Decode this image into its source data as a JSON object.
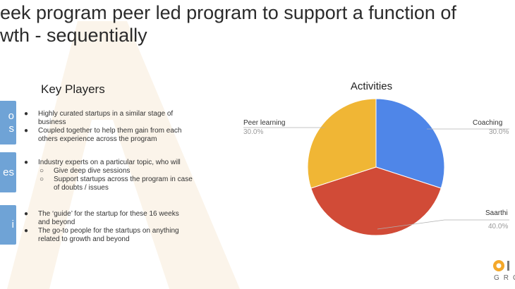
{
  "header": {
    "title_line1": "eek program peer led program to support a function of",
    "title_line2": "wth - sequentially"
  },
  "key_players": {
    "title": "Key Players",
    "tabs": [
      {
        "label_lines": [
          "o",
          "s"
        ]
      },
      {
        "label_lines": [
          "es"
        ]
      },
      {
        "label_lines": [
          "i"
        ]
      }
    ],
    "groups": [
      {
        "items": [
          {
            "lines": [
              "Highly curated startups in a similar stage of",
              "business"
            ]
          },
          {
            "lines": [
              "Coupled together to help them gain from each",
              "others experience across the program"
            ]
          }
        ]
      },
      {
        "items": [
          {
            "lines": [
              "Industry experts on a particular topic, who will"
            ],
            "sub": [
              {
                "lines": [
                  "Give deep dive sessions"
                ]
              },
              {
                "lines": [
                  "Support startups across the program in case",
                  "of doubts / issues"
                ]
              }
            ]
          }
        ]
      },
      {
        "items": [
          {
            "lines": [
              "The ‘guide’ for the startup for these 16 weeks",
              "and beyond"
            ]
          },
          {
            "lines": [
              "The go-to people for the startups on anything",
              "related to growth and beyond"
            ]
          }
        ]
      }
    ],
    "bullet": "●",
    "sub_bullet": "○"
  },
  "chart_data": {
    "type": "pie",
    "title": "Activities",
    "slices": [
      {
        "label": "Coaching",
        "value": 30.0,
        "pct_label": "30.0%",
        "color": "#4f86e8"
      },
      {
        "label": "Saarthi",
        "value": 40.0,
        "pct_label": "40.0%",
        "color": "#d14b37"
      },
      {
        "label": "Peer learning",
        "value": 30.0,
        "pct_label": "30.0%",
        "color": "#f0b635"
      }
    ],
    "start_angle_deg": 0,
    "direction": "clockwise",
    "legend": "none",
    "labels": "outside with leader lines"
  },
  "logo": {
    "text": "GRO",
    "colors": {
      "mark": "#f4a82a"
    }
  },
  "colors": {
    "tab_blue": "#6fa3d6",
    "watermark": "#fbf3e8",
    "leader_line": "#b0b0b0"
  }
}
